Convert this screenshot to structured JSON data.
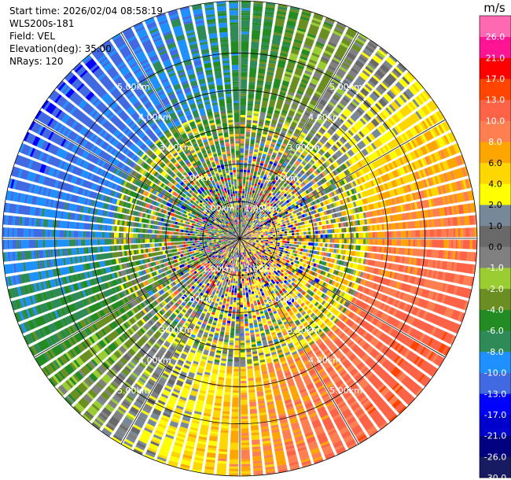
{
  "info": {
    "start_time": "Start time: 2026/02/04 08:58:19",
    "instrument": "WLS200s-181",
    "field": "Field: VEL",
    "elevation": "Elevation(deg): 35.00",
    "nrays": "NRays: 120"
  },
  "chart_data": {
    "type": "heatmap",
    "projection": "polar-ppi",
    "title": "",
    "field": "VEL",
    "elevation_deg": 35.0,
    "n_rays": 120,
    "range_rings_km": [
      1,
      2,
      3,
      4,
      5
    ],
    "range_ring_labels": [
      "1.00km",
      "2.00km",
      "3.00km",
      "4.00km",
      "5.00km"
    ],
    "max_range_km": 5.0,
    "colorbar": {
      "unit": "m/s",
      "boundaries": [
        -30,
        -26,
        -21,
        -17,
        -13,
        -10,
        -8,
        -6,
        -4,
        -2,
        -1,
        0,
        1,
        2,
        4,
        6,
        8,
        10,
        13,
        17,
        21,
        26,
        30
      ],
      "tick_labels": [
        "-30.0",
        "-26.0",
        "-21.0",
        "-17.0",
        "-13.0",
        "-10.0",
        "-8.0",
        "-6.0",
        "-4.0",
        "-2.0",
        "-1.0",
        "0.0",
        "1.0",
        "2.0",
        "4.0",
        "6.0",
        "8.0",
        "10.0",
        "13.0",
        "17.0",
        "21.0",
        "26.0"
      ],
      "colors": [
        "#161b62",
        "#000080",
        "#0000cd",
        "#0000ff",
        "#4169e1",
        "#1e90ff",
        "#2e8b57",
        "#228b22",
        "#6b8e23",
        "#9acd32",
        "#808080",
        "#696969",
        "#778899",
        "#ffff00",
        "#ffd700",
        "#ffa500",
        "#ff7f50",
        "#ff6347",
        "#ff4500",
        "#ff0000",
        "#ff1493",
        "#ff69b4"
      ]
    },
    "velocity_pattern": {
      "description": "radial velocity dipole",
      "negative_sector_center_deg": 305,
      "positive_sector_center_deg": 125,
      "peak_speed_ms": 12.0,
      "noisy_inner_range_km": 2.7
    }
  }
}
